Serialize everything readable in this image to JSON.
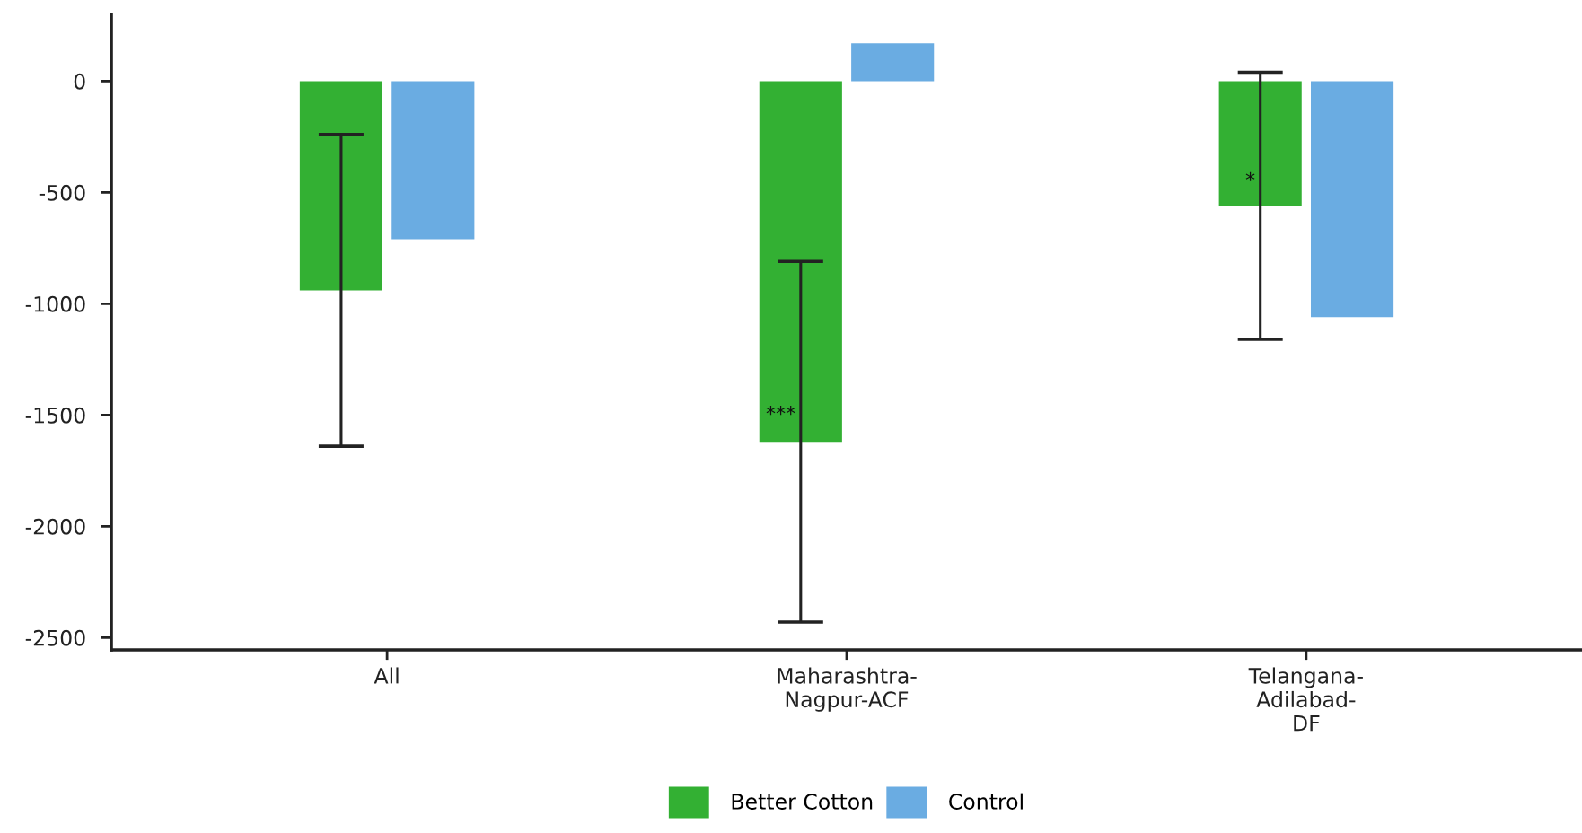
{
  "chart_data": {
    "type": "bar",
    "categories": [
      "All",
      "Maharashtra-\nNagpur-ACF",
      "Telangana-\nAdilabad-\nDF"
    ],
    "series": [
      {
        "name": "Better Cotton",
        "color": "#33b033",
        "values": [
          -940,
          -1620,
          -560
        ],
        "errors": [
          700,
          810,
          600
        ]
      },
      {
        "name": "Control",
        "color": "#6aace2",
        "values": [
          -710,
          170,
          -1060
        ]
      }
    ],
    "ylim": [
      -2555,
      300
    ],
    "yticks": [
      0,
      -500,
      -1000,
      -1500,
      -2000,
      -2500
    ],
    "annotations": [
      {
        "text": "***",
        "x": "Maharashtra-\nNagpur-ACF",
        "y": -1500
      },
      {
        "text": "*",
        "x": "Telangana-\nAdilabad-\nDF",
        "y": -450
      }
    ],
    "legend": "bottom"
  }
}
